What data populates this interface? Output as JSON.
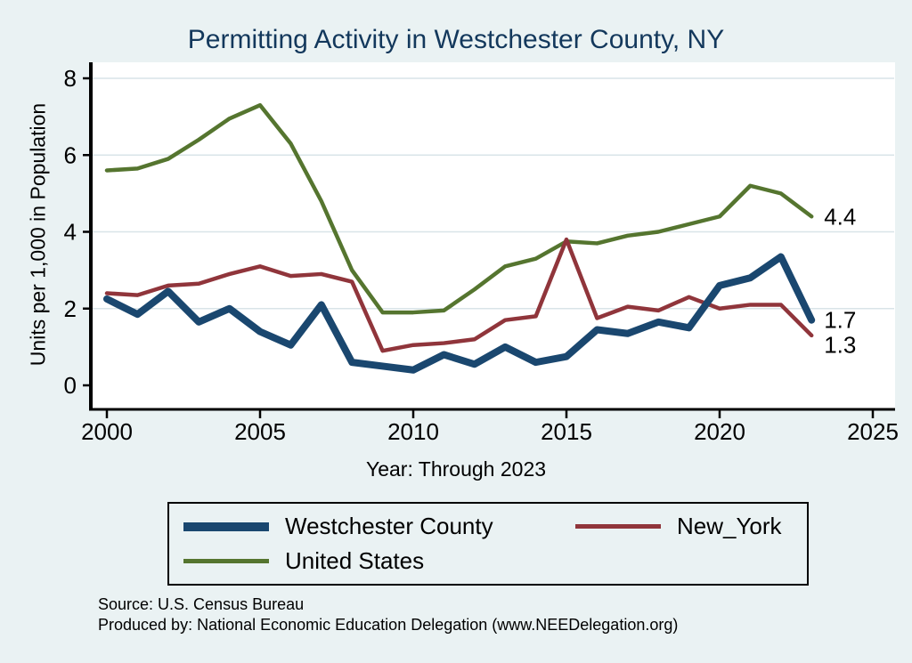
{
  "chart_data": {
    "type": "line",
    "title": "Permitting Activity in Westchester County, NY",
    "xlabel": "Year: Through 2023",
    "ylabel": "Units per 1,000 in Population",
    "xlim": [
      2000,
      2025
    ],
    "ylim": [
      0,
      8
    ],
    "xticks": [
      2000,
      2005,
      2010,
      2015,
      2020,
      2025
    ],
    "yticks": [
      0,
      2,
      4,
      6,
      8
    ],
    "grid": "horizontal",
    "legend_position": "bottom",
    "x": [
      2000,
      2001,
      2002,
      2003,
      2004,
      2005,
      2006,
      2007,
      2008,
      2009,
      2010,
      2011,
      2012,
      2013,
      2014,
      2015,
      2016,
      2017,
      2018,
      2019,
      2020,
      2021,
      2022,
      2023
    ],
    "series": [
      {
        "name": "Westchester County",
        "color": "#1a476f",
        "width": 8,
        "end_label": "1.7",
        "values": [
          2.25,
          1.85,
          2.45,
          1.65,
          2.0,
          1.4,
          1.05,
          2.1,
          0.6,
          0.5,
          0.4,
          0.8,
          0.55,
          1.0,
          0.6,
          0.75,
          1.45,
          1.35,
          1.65,
          1.5,
          2.6,
          2.8,
          3.35,
          1.7
        ]
      },
      {
        "name": "New_York",
        "color": "#90353b",
        "width": 4.5,
        "end_label": "1.3",
        "values": [
          2.4,
          2.35,
          2.6,
          2.65,
          2.9,
          3.1,
          2.85,
          2.9,
          2.7,
          0.9,
          1.05,
          1.1,
          1.2,
          1.7,
          1.8,
          3.8,
          1.75,
          2.05,
          1.95,
          2.3,
          2.0,
          2.1,
          2.1,
          1.3
        ]
      },
      {
        "name": "United States",
        "color": "#55752f",
        "width": 4.5,
        "end_label": "4.4",
        "values": [
          5.6,
          5.65,
          5.9,
          6.4,
          6.95,
          7.3,
          6.3,
          4.8,
          3.0,
          1.9,
          1.9,
          1.95,
          2.5,
          3.1,
          3.3,
          3.75,
          3.7,
          3.9,
          4.0,
          4.2,
          4.4,
          5.2,
          5.0,
          4.4
        ]
      }
    ]
  },
  "notes": {
    "source": "Source: U.S. Census Bureau",
    "produced_by": "Produced by: National Economic Education Delegation (www.NEEDelegation.org)"
  }
}
